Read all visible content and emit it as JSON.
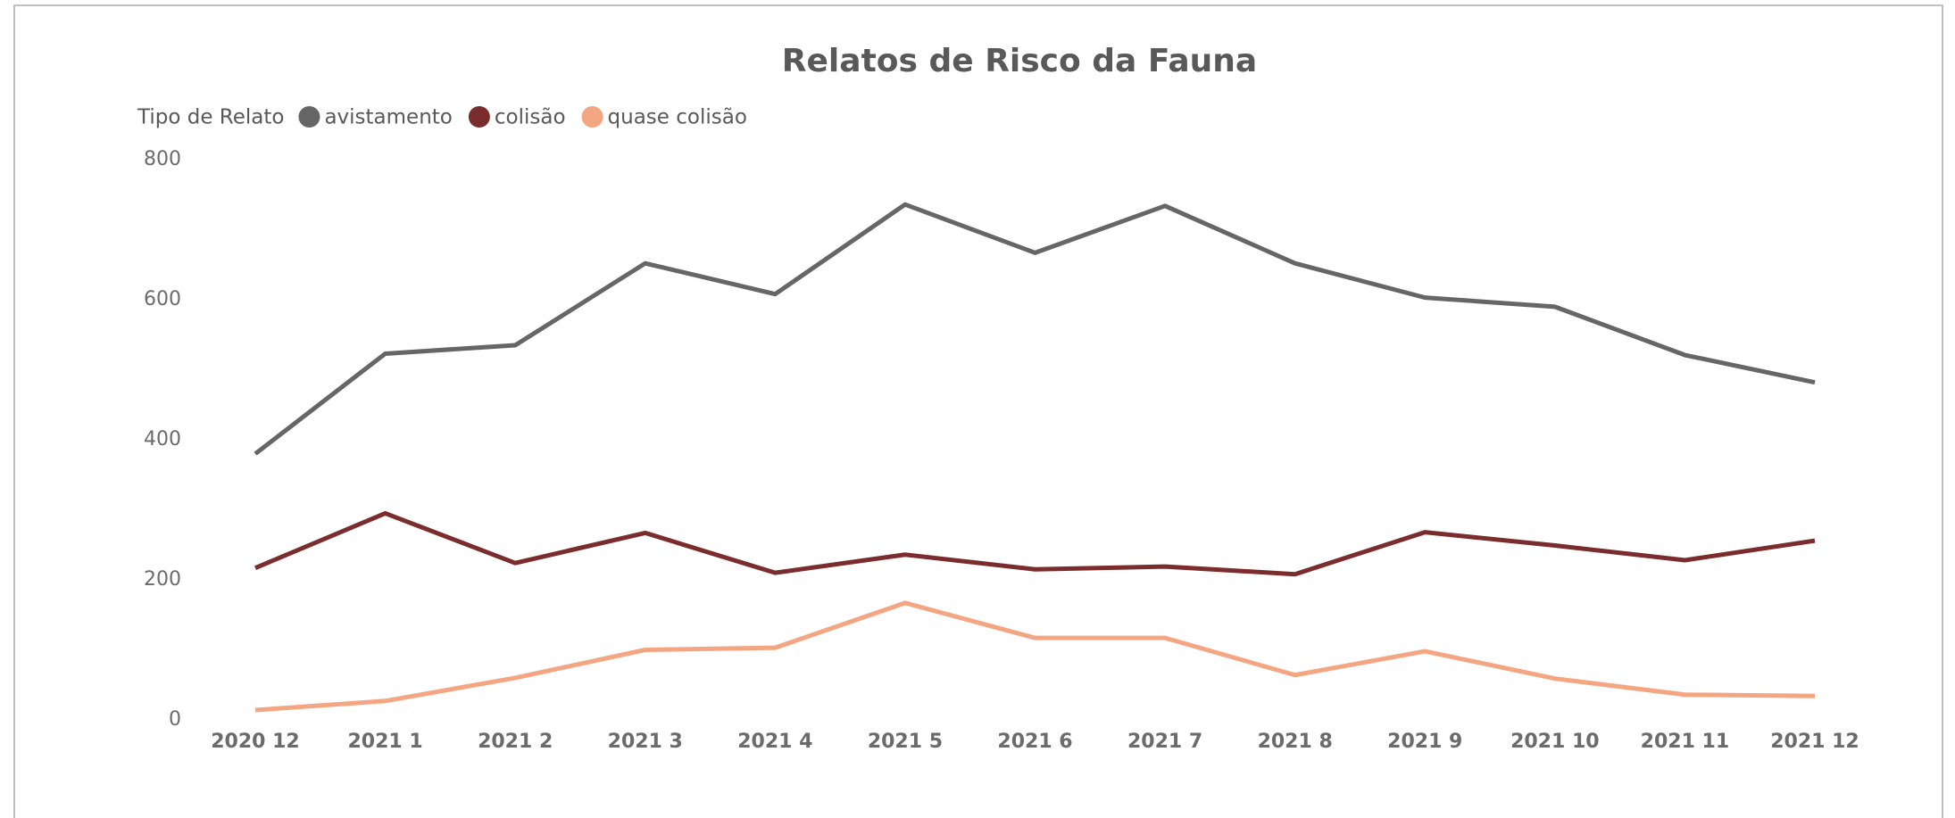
{
  "chart_data": {
    "type": "line",
    "title": "Relatos de Risco da Fauna",
    "legend_title": "Tipo de Relato",
    "legend": "top-left",
    "grid": false,
    "categories": [
      "2020 12",
      "2021 1",
      "2021 2",
      "2021 3",
      "2021 4",
      "2021 5",
      "2021 6",
      "2021 7",
      "2021 8",
      "2021 9",
      "2021 10",
      "2021 11",
      "2021 12"
    ],
    "series": [
      {
        "name": "avistamento",
        "color": "#666666",
        "values": [
          380,
          523,
          535,
          652,
          608,
          736,
          667,
          734,
          652,
          603,
          590,
          521,
          482
        ]
      },
      {
        "name": "colisão",
        "color": "#7b2c2c",
        "values": [
          217,
          295,
          224,
          267,
          210,
          236,
          215,
          219,
          208,
          268,
          249,
          228,
          256
        ]
      },
      {
        "name": "quase colisão",
        "color": "#f4a582",
        "values": [
          14,
          27,
          60,
          100,
          103,
          167,
          117,
          117,
          64,
          98,
          59,
          36,
          34
        ]
      }
    ],
    "ylim": [
      0,
      800
    ],
    "yticks": [
      0,
      200,
      400,
      600,
      800
    ]
  }
}
